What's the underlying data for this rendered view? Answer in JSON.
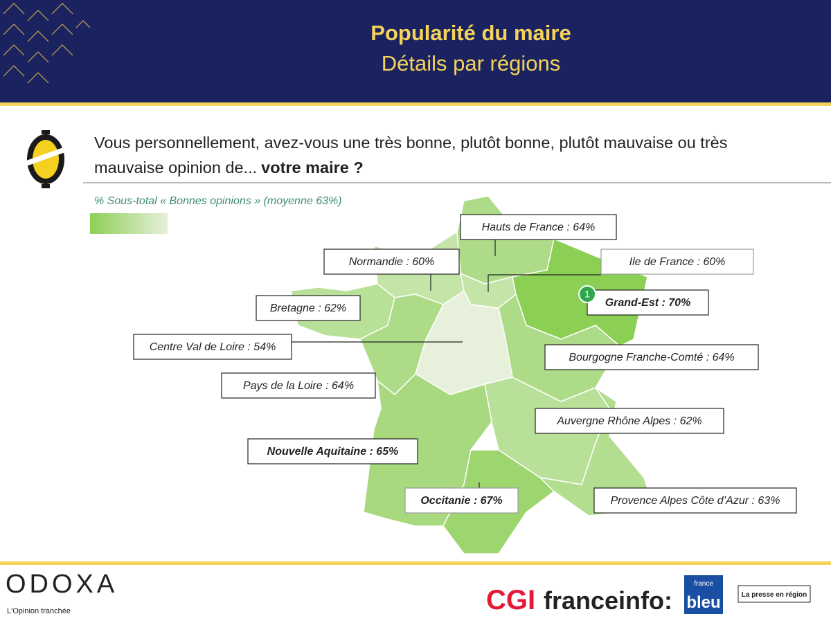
{
  "header": {
    "title": "Popularité du maire",
    "subtitle": "Détails par régions"
  },
  "question": {
    "text": "Vous personnellement, avez-vous une très bonne, plutôt bonne, plutôt mauvaise ou très mauvaise opinion de...",
    "emphasis": "votre maire ?"
  },
  "legend": {
    "text": "% Sous-total « Bonnes opinions » (moyenne 63%)",
    "colors": [
      "#8ccf55",
      "#e6f0da"
    ]
  },
  "regions": [
    {
      "label": "Hauts de France : 64%",
      "value": 64
    },
    {
      "label": "Normandie : 60%",
      "value": 60
    },
    {
      "label": "Ile de France : 60%",
      "value": 60
    },
    {
      "label": "Bretagne : 62%",
      "value": 62
    },
    {
      "label": "Centre Val de Loire : 54%",
      "value": 54
    },
    {
      "label": "Pays de la Loire : 64%",
      "value": 64
    },
    {
      "label": "Grand-Est : 70%",
      "value": 70,
      "badge": "1"
    },
    {
      "label": "Bourgogne Franche-Comté : 64%",
      "value": 64
    },
    {
      "label": "Auvergne Rhône Alpes : 62%",
      "value": 62
    },
    {
      "label": "Nouvelle Aquitaine : 65%",
      "value": 65
    },
    {
      "label": "Occitanie : 67%",
      "value": 67
    },
    {
      "label": "Provence Alpes Côte d’Azur : 63%",
      "value": 63
    }
  ],
  "footer": {
    "odoxa": "ODOXA",
    "tagline": "L'Opinion tranchée",
    "cgi": "CGI",
    "franceinfo": "franceinfo:",
    "bleu_top": "france",
    "bleu": "bleu",
    "presse": "La presse en région"
  }
}
